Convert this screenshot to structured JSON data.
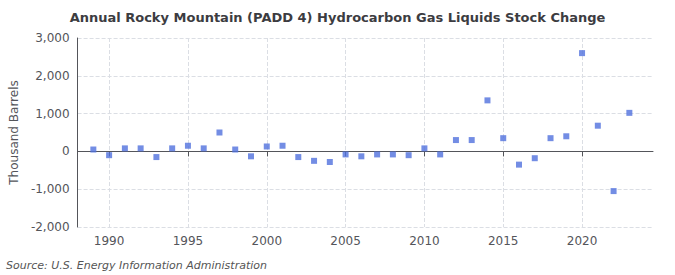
{
  "chart_data": {
    "type": "scatter",
    "title": "Annual Rocky Mountain (PADD 4) Hydrocarbon Gas Liquids Stock Change",
    "y_label": "Thousand Barrels",
    "annotations": [
      "Source: U.S. Energy Information Administration"
    ],
    "x": [
      1989,
      1990,
      1991,
      1992,
      1993,
      1994,
      1995,
      1996,
      1997,
      1998,
      1999,
      2000,
      2001,
      2002,
      2003,
      2004,
      2005,
      2006,
      2007,
      2008,
      2009,
      2010,
      2011,
      2012,
      2013,
      2014,
      2015,
      2016,
      2017,
      2018,
      2019,
      2020,
      2021,
      2022,
      2023
    ],
    "values": [
      50,
      -100,
      80,
      80,
      -150,
      80,
      150,
      80,
      500,
      50,
      -130,
      130,
      150,
      -150,
      -250,
      -280,
      -80,
      -130,
      -80,
      -80,
      -100,
      80,
      -80,
      300,
      300,
      1350,
      350,
      -350,
      -180,
      350,
      400,
      2600,
      680,
      -1050,
      1020
    ],
    "marker": "square",
    "xlim": [
      1988,
      2024.5
    ],
    "xticks": [
      1990,
      1995,
      2000,
      2005,
      2010,
      2015,
      2020
    ],
    "ylim": [
      -2000,
      3000
    ],
    "yticks": [
      {
        "value": -2000,
        "label": "-2,000"
      },
      {
        "value": -1000,
        "label": "-1,000"
      },
      0,
      {
        "value": 1000,
        "label": "1,000"
      },
      {
        "value": 2000,
        "label": "2,000"
      },
      {
        "value": 3000,
        "label": "3,000"
      }
    ],
    "grid": true
  }
}
